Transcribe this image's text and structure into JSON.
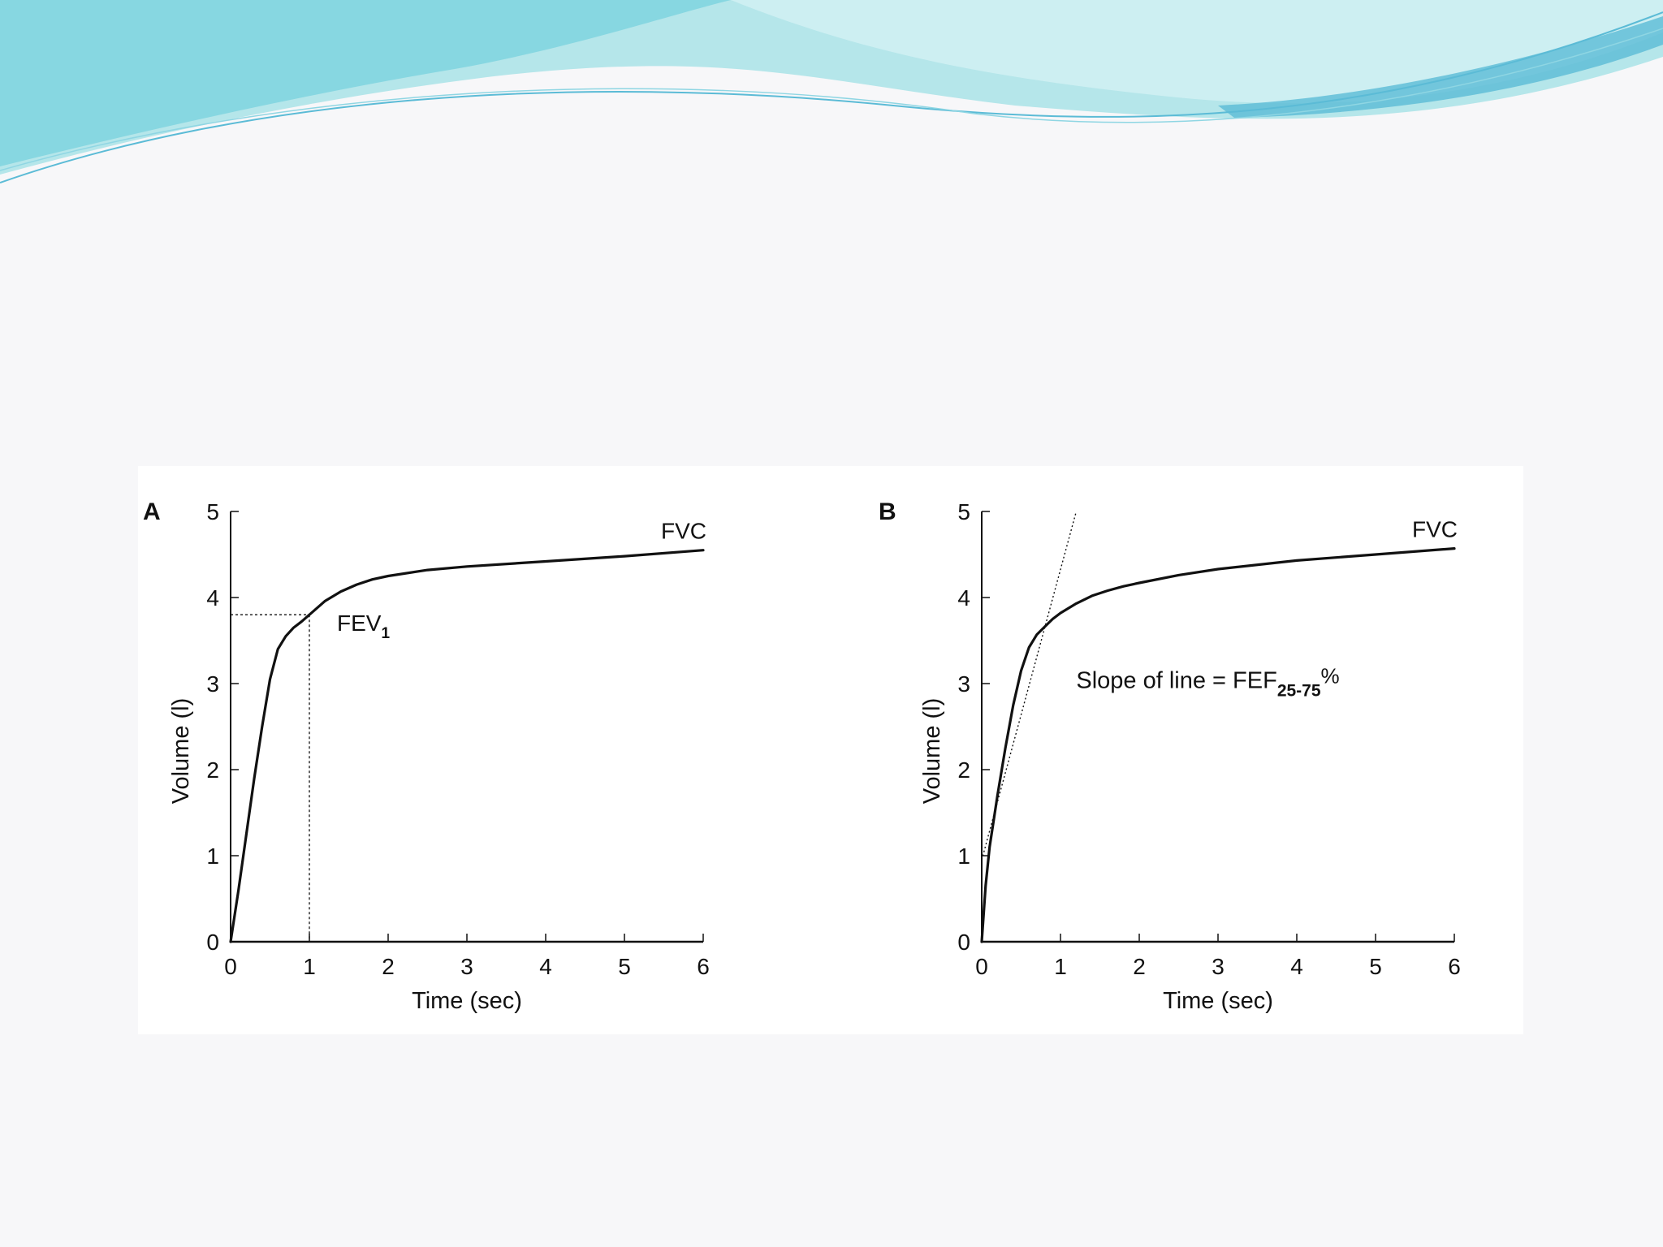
{
  "colors": {
    "background": "#f7f7f9",
    "banner_light": "#b5e6ea",
    "banner_mid": "#7fd3df",
    "banner_deep": "#5bbbd6",
    "ink": "#111111"
  },
  "chart_data": [
    {
      "type": "line",
      "panel_label": "A",
      "xlabel": "Time (sec)",
      "ylabel": "Volume (l)",
      "xlim": [
        0,
        6
      ],
      "ylim": [
        0,
        5
      ],
      "xticks": [
        "0",
        "1",
        "2",
        "3",
        "4",
        "5",
        "6"
      ],
      "yticks": [
        "0",
        "1",
        "2",
        "3",
        "4",
        "5"
      ],
      "grid": false,
      "series": [
        {
          "x": [
            0,
            0.1,
            0.2,
            0.3,
            0.4,
            0.5,
            0.6,
            0.7,
            0.8,
            0.9,
            1.0,
            1.2,
            1.4,
            1.6,
            1.8,
            2.0,
            2.5,
            3.0,
            4.0,
            5.0,
            6.0
          ],
          "y": [
            0,
            0.6,
            1.25,
            1.9,
            2.5,
            3.05,
            3.4,
            3.55,
            3.65,
            3.72,
            3.8,
            3.96,
            4.07,
            4.15,
            4.21,
            4.25,
            4.32,
            4.36,
            4.42,
            4.48,
            4.55
          ]
        }
      ],
      "annotations": {
        "series_end_label": "FVC",
        "fev_label": "FEV",
        "fev_subscript": "1",
        "fev_point": [
          1.0,
          3.8
        ]
      }
    },
    {
      "type": "line",
      "panel_label": "B",
      "xlabel": "Time (sec)",
      "ylabel": "Volume (l)",
      "xlim": [
        0,
        6
      ],
      "ylim": [
        0,
        5
      ],
      "xticks": [
        "0",
        "1",
        "2",
        "3",
        "4",
        "5",
        "6"
      ],
      "yticks": [
        "0",
        "1",
        "2",
        "3",
        "4",
        "5"
      ],
      "grid": false,
      "series": [
        {
          "x": [
            0,
            0.05,
            0.1,
            0.2,
            0.3,
            0.4,
            0.5,
            0.6,
            0.7,
            0.8,
            0.9,
            1.0,
            1.2,
            1.4,
            1.6,
            1.8,
            2.0,
            2.5,
            3.0,
            4.0,
            5.0,
            6.0
          ],
          "y": [
            0,
            0.65,
            1.1,
            1.7,
            2.25,
            2.75,
            3.15,
            3.42,
            3.57,
            3.66,
            3.75,
            3.82,
            3.93,
            4.02,
            4.08,
            4.13,
            4.17,
            4.26,
            4.33,
            4.43,
            4.5,
            4.57
          ]
        }
      ],
      "slope_line": {
        "x": [
          0,
          1.2
        ],
        "y": [
          0.95,
          5.0
        ]
      },
      "annotations": {
        "series_end_label": "FVC",
        "slope_text": "Slope of line = FEF",
        "slope_subscript": "25-75",
        "slope_suffix": "%"
      }
    }
  ]
}
